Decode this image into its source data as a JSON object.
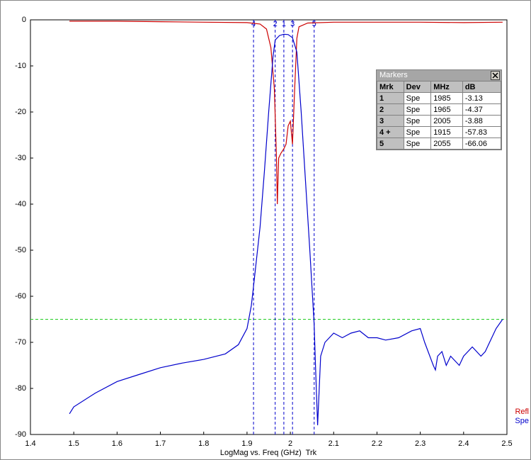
{
  "chart_data": {
    "type": "line",
    "x_axis_label": "LogMag vs. Freq (GHz)  Trk",
    "xlim": [
      1.4,
      2.5
    ],
    "xticks": [
      1.4,
      1.5,
      1.6,
      1.7,
      1.8,
      1.9,
      2,
      2.1,
      2.2,
      2.3,
      2.4,
      2.5
    ],
    "ylim": [
      -90,
      0
    ],
    "yticks": [
      0,
      -10,
      -20,
      -30,
      -40,
      -50,
      -60,
      -70,
      -80,
      -90
    ],
    "reference_line": {
      "value": -65,
      "color": "#22cc22"
    },
    "marker_lines": [
      {
        "label": "4",
        "x": 1.915
      },
      {
        "label": "2",
        "x": 1.965
      },
      {
        "label": "1",
        "x": 1.985
      },
      {
        "label": "3",
        "x": 2.005
      },
      {
        "label": "5",
        "x": 2.055
      }
    ],
    "series": [
      {
        "name": "Refl",
        "color": "#cc0000",
        "x": [
          1.49,
          1.6,
          1.7,
          1.8,
          1.9,
          1.93,
          1.945,
          1.955,
          1.963,
          1.968,
          1.97,
          1.973,
          1.978,
          1.985,
          1.99,
          1.995,
          2.0,
          2.003,
          2.005,
          2.01,
          2.015,
          2.02,
          2.04,
          2.1,
          2.2,
          2.3,
          2.4,
          2.49
        ],
        "values": [
          -0.3,
          -0.3,
          -0.4,
          -0.5,
          -0.6,
          -0.9,
          -2,
          -6,
          -15,
          -30,
          -40,
          -30,
          -29,
          -28,
          -27,
          -23,
          -22,
          -25,
          -27,
          -15,
          -4,
          -1.5,
          -0.7,
          -0.5,
          -0.5,
          -0.5,
          -0.6,
          -0.5
        ]
      },
      {
        "name": "Spe",
        "color": "#0000cc",
        "x": [
          1.49,
          1.5,
          1.55,
          1.6,
          1.65,
          1.7,
          1.75,
          1.8,
          1.85,
          1.88,
          1.9,
          1.91,
          1.915,
          1.93,
          1.94,
          1.95,
          1.96,
          1.965,
          1.975,
          1.985,
          1.995,
          2.005,
          2.015,
          2.025,
          2.035,
          2.045,
          2.055,
          2.058,
          2.063,
          2.07,
          2.08,
          2.1,
          2.12,
          2.14,
          2.16,
          2.18,
          2.2,
          2.22,
          2.25,
          2.28,
          2.3,
          2.31,
          2.33,
          2.335,
          2.34,
          2.35,
          2.36,
          2.37,
          2.38,
          2.39,
          2.4,
          2.42,
          2.44,
          2.45,
          2.46,
          2.475,
          2.49
        ],
        "values": [
          -85.5,
          -84,
          -81,
          -78.5,
          -77,
          -75.5,
          -74.5,
          -73.7,
          -72.5,
          -70.5,
          -67,
          -62,
          -57.83,
          -45,
          -33,
          -20,
          -8,
          -4.37,
          -3.4,
          -3.13,
          -3.2,
          -3.88,
          -7,
          -20,
          -35,
          -50,
          -66.06,
          -75,
          -88,
          -73,
          -70,
          -68,
          -69,
          -68,
          -67.5,
          -69,
          -69,
          -69.5,
          -69,
          -67.5,
          -67,
          -70,
          -75,
          -76,
          -73,
          -72,
          -75,
          -73,
          -74,
          -75,
          -73,
          -71,
          -73,
          -72,
          -70,
          -67,
          -65
        ]
      }
    ]
  },
  "markers": {
    "title": "Markers",
    "columns": [
      "Mrk",
      "Dev",
      "MHz",
      "dB"
    ],
    "rows": [
      [
        "1",
        "Spe",
        "1985",
        "-3.13"
      ],
      [
        "2",
        "Spe",
        "1965",
        "-4.37"
      ],
      [
        "3",
        "Spe",
        "2005",
        "-3.88"
      ],
      [
        "4 +",
        "Spe",
        "1915",
        "-57.83"
      ],
      [
        "5",
        "Spe",
        "2055",
        "-66.06"
      ]
    ]
  }
}
